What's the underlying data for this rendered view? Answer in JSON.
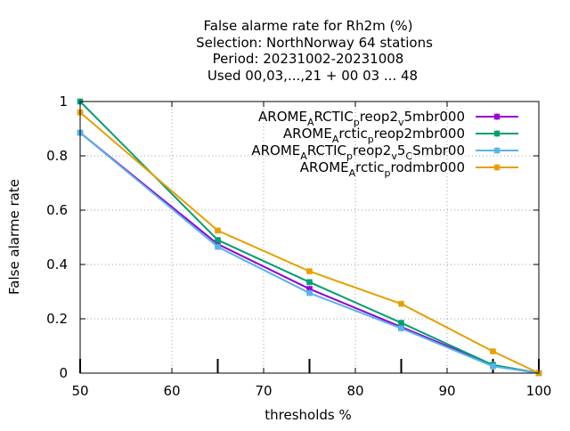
{
  "chart_data": {
    "type": "line",
    "title": [
      "False alarme rate  for Rh2m (%)",
      "Selection: NorthNorway     64 stations",
      "Period: 20231002-20231008",
      "Used  00,03,...,21  + 00 03 ... 48"
    ],
    "xlabel": "thresholds %",
    "ylabel": "False alarme rate",
    "xlim": [
      50,
      100
    ],
    "ylim": [
      0,
      1
    ],
    "xticks": [
      50,
      60,
      70,
      80,
      90,
      100
    ],
    "yticks": [
      0,
      0.2,
      0.4,
      0.6,
      0.8,
      1
    ],
    "xtick_labels": [
      "50",
      "60",
      "70",
      "80",
      "90",
      "100"
    ],
    "ytick_labels": [
      "0",
      "0.2",
      "0.4",
      "0.6",
      "0.8",
      "1"
    ],
    "grid": true,
    "legend_position": "top-right",
    "bottom_markers_x": [
      50,
      65,
      75,
      85,
      95,
      100
    ],
    "series": [
      {
        "name_parts": [
          {
            "text": "AROME",
            "sub": false
          },
          {
            "text": "A",
            "sub": true
          },
          {
            "text": "RCTIC",
            "sub": false
          },
          {
            "text": "p",
            "sub": true
          },
          {
            "text": "reop2",
            "sub": false
          },
          {
            "text": "v",
            "sub": true
          },
          {
            "text": "5mbr000",
            "sub": false
          }
        ],
        "color": "#9400d3",
        "x": [
          50,
          65,
          75,
          85,
          95,
          100
        ],
        "y": [
          0.885,
          0.475,
          0.31,
          0.17,
          0.03,
          0.0
        ]
      },
      {
        "name_parts": [
          {
            "text": "AROME",
            "sub": false
          },
          {
            "text": "A",
            "sub": true
          },
          {
            "text": "rctic",
            "sub": false
          },
          {
            "text": "p",
            "sub": true
          },
          {
            "text": "reop2mbr000",
            "sub": false
          }
        ],
        "color": "#009e73",
        "x": [
          50,
          65,
          75,
          85,
          95,
          100
        ],
        "y": [
          1.0,
          0.49,
          0.335,
          0.185,
          0.03,
          0.0
        ]
      },
      {
        "name_parts": [
          {
            "text": "AROME",
            "sub": false
          },
          {
            "text": "A",
            "sub": true
          },
          {
            "text": "RCTIC",
            "sub": false
          },
          {
            "text": "p",
            "sub": true
          },
          {
            "text": "reop2",
            "sub": false
          },
          {
            "text": "v",
            "sub": true
          },
          {
            "text": "5",
            "sub": false
          },
          {
            "text": "C",
            "sub": true
          },
          {
            "text": "Smbr00",
            "sub": false
          }
        ],
        "color": "#56b4e9",
        "x": [
          50,
          65,
          75,
          85,
          95,
          100
        ],
        "y": [
          0.885,
          0.465,
          0.295,
          0.165,
          0.025,
          0.0
        ]
      },
      {
        "name_parts": [
          {
            "text": "AROME",
            "sub": false
          },
          {
            "text": "A",
            "sub": true
          },
          {
            "text": "rctic",
            "sub": false
          },
          {
            "text": "p",
            "sub": true
          },
          {
            "text": "rodmbr000",
            "sub": false
          }
        ],
        "color": "#e69f00",
        "x": [
          50,
          65,
          75,
          85,
          95,
          100
        ],
        "y": [
          0.96,
          0.525,
          0.375,
          0.255,
          0.08,
          0.0
        ]
      }
    ]
  }
}
